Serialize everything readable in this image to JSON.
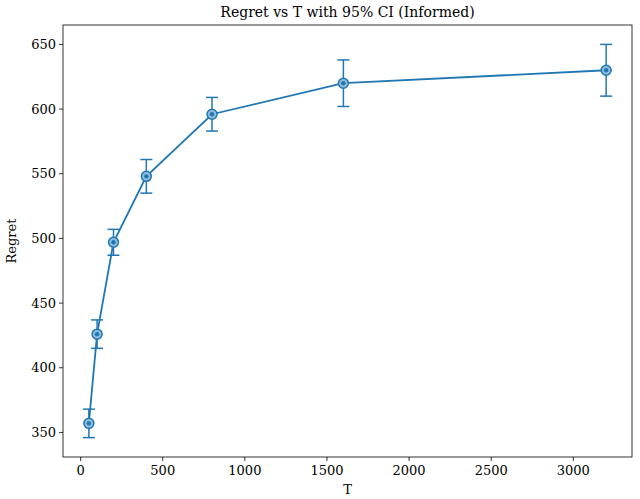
{
  "chart_data": {
    "type": "line",
    "title": "Regret vs T with 95% CI (Informed)",
    "x_label": "T",
    "y_label": "Regret",
    "x": [
      50,
      100,
      200,
      400,
      800,
      1600,
      3200
    ],
    "series": [
      {
        "name": "Regret",
        "color": "#1f77b4",
        "marker": "o",
        "line_style": "solid",
        "values": [
          357,
          426,
          497,
          548,
          596,
          620,
          630
        ],
        "errors": [
          11,
          11,
          10,
          13,
          13,
          18,
          20
        ]
      }
    ],
    "xlim": [
      -107.5,
      3357.5
    ],
    "ylim": [
      331,
      665
    ],
    "xticks": [
      0,
      500,
      1000,
      1500,
      2000,
      2500,
      3000
    ],
    "yticks": [
      350,
      400,
      450,
      500,
      550,
      600,
      650
    ],
    "grid": false
  }
}
